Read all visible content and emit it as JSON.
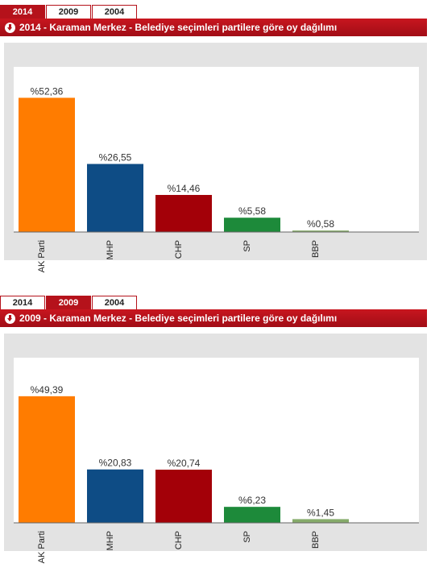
{
  "panels": [
    {
      "tabs": [
        {
          "label": "2014",
          "active": true
        },
        {
          "label": "2009",
          "active": false
        },
        {
          "label": "2004",
          "active": false
        }
      ],
      "title": "2014 - Karaman Merkez - Belediye seçimleri partilere göre oy dağılımı"
    },
    {
      "tabs": [
        {
          "label": "2014",
          "active": false
        },
        {
          "label": "2009",
          "active": true
        },
        {
          "label": "2004",
          "active": false
        }
      ],
      "title": "2009 - Karaman Merkez - Belediye seçimleri partilere göre oy dağılımı"
    }
  ],
  "chart_data": [
    {
      "type": "bar",
      "categories": [
        "AK Parti",
        "MHP",
        "CHP",
        "SP",
        "BBP"
      ],
      "values": [
        52.36,
        26.55,
        14.46,
        5.58,
        0.58
      ],
      "data_labels": [
        "%52,36",
        "%26,55",
        "%14,46",
        "%5,58",
        "%0,58"
      ],
      "colors": [
        "#ff7c00",
        "#0e4c85",
        "#a30008",
        "#1d8a3a",
        "#86ab6a"
      ],
      "ylim": [
        0,
        55
      ]
    },
    {
      "type": "bar",
      "categories": [
        "AK Parti",
        "MHP",
        "CHP",
        "SP",
        "BBP"
      ],
      "values": [
        49.39,
        20.83,
        20.74,
        6.23,
        1.45
      ],
      "data_labels": [
        "%49,39",
        "%20,83",
        "%20,74",
        "%6,23",
        "%1,45"
      ],
      "colors": [
        "#ff7c00",
        "#0e4c85",
        "#a30008",
        "#1d8a3a",
        "#86ab6a"
      ],
      "ylim": [
        0,
        55
      ]
    }
  ]
}
